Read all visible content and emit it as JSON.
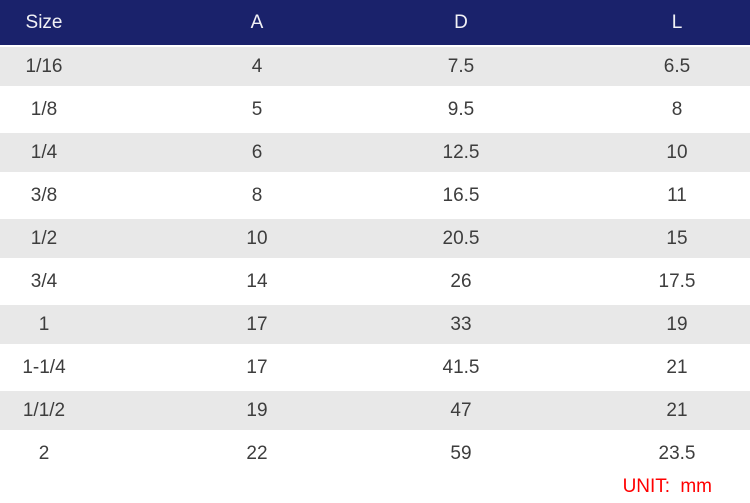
{
  "table": {
    "columns": {
      "size": "Size",
      "a": "A",
      "d": "D",
      "l": "L"
    },
    "rows": [
      {
        "size": "1/16",
        "a": "4",
        "d": "7.5",
        "l": "6.5"
      },
      {
        "size": "1/8",
        "a": "5",
        "d": "9.5",
        "l": "8"
      },
      {
        "size": "1/4",
        "a": "6",
        "d": "12.5",
        "l": "10"
      },
      {
        "size": "3/8",
        "a": "8",
        "d": "16.5",
        "l": "11"
      },
      {
        "size": "1/2",
        "a": "10",
        "d": "20.5",
        "l": "15"
      },
      {
        "size": "3/4",
        "a": "14",
        "d": "26",
        "l": "17.5"
      },
      {
        "size": "1",
        "a": "17",
        "d": "33",
        "l": "19"
      },
      {
        "size": "1-1/4",
        "a": "17",
        "d": "41.5",
        "l": "21"
      },
      {
        "size": "1/1/2",
        "a": "19",
        "d": "47",
        "l": "21"
      },
      {
        "size": "2",
        "a": "22",
        "d": "59",
        "l": "23.5"
      }
    ]
  },
  "footer": {
    "unit_label": "UNIT: mm"
  },
  "colors": {
    "header_bg": "#1a226b",
    "header_text": "#f2f2f6",
    "alt_row_bg": "#e8e8e8",
    "body_text": "#3d3d3d",
    "unit_text": "#ff0000"
  }
}
